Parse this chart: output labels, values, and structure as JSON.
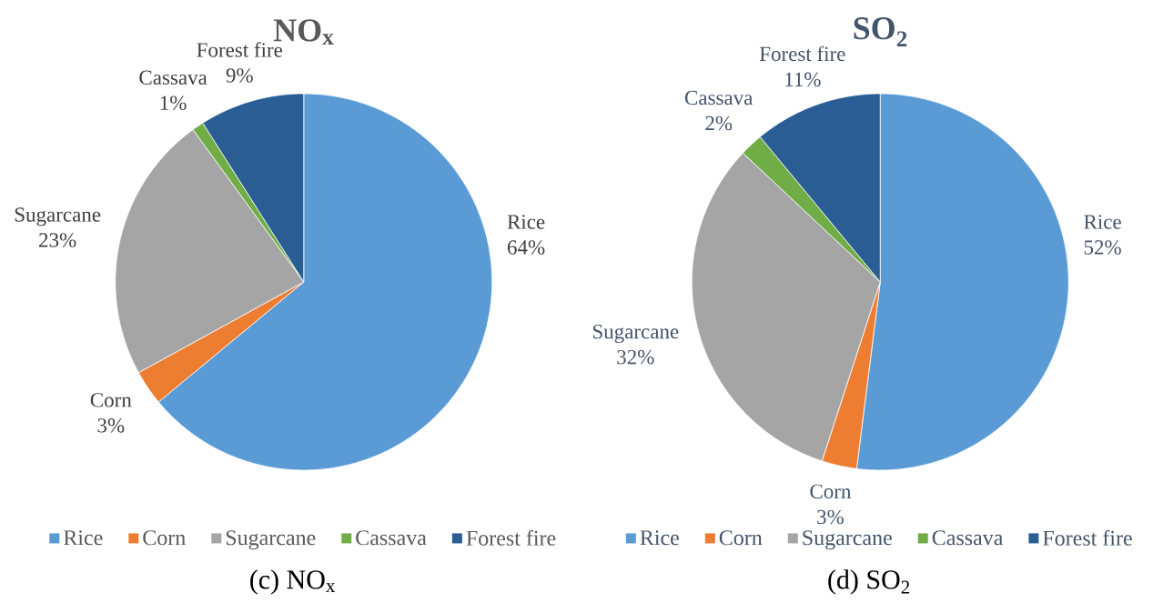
{
  "chart_data": [
    {
      "type": "pie",
      "title": "NO$_{x}$",
      "categories": [
        "Rice",
        "Corn",
        "Sugarcane",
        "Cassava",
        "Forest fire"
      ],
      "values": [
        64,
        3,
        23,
        1,
        9
      ],
      "colors": [
        "#5b9bd5",
        "#ed7d31",
        "#a5a5a5",
        "#70ad47",
        "#2a5d94"
      ],
      "value_labels": [
        "64%",
        "3%",
        "23%",
        "1%",
        "9%"
      ],
      "legend": "bottom",
      "annotations": [
        "(c) NO$_{x}$"
      ]
    },
    {
      "type": "pie",
      "title": "SO$_{2}$",
      "categories": [
        "Rice",
        "Corn",
        "Sugarcane",
        "Cassava",
        "Forest fire"
      ],
      "values": [
        52,
        3,
        32,
        2,
        11
      ],
      "colors": [
        "#5b9bd5",
        "#ed7d31",
        "#a5a5a5",
        "#70ad47",
        "#2a5d94"
      ],
      "value_labels": [
        "52%",
        "3%",
        "32%",
        "2%",
        "11%"
      ],
      "legend": "bottom",
      "annotations": [
        "(d) SO$_{2}$"
      ]
    }
  ]
}
